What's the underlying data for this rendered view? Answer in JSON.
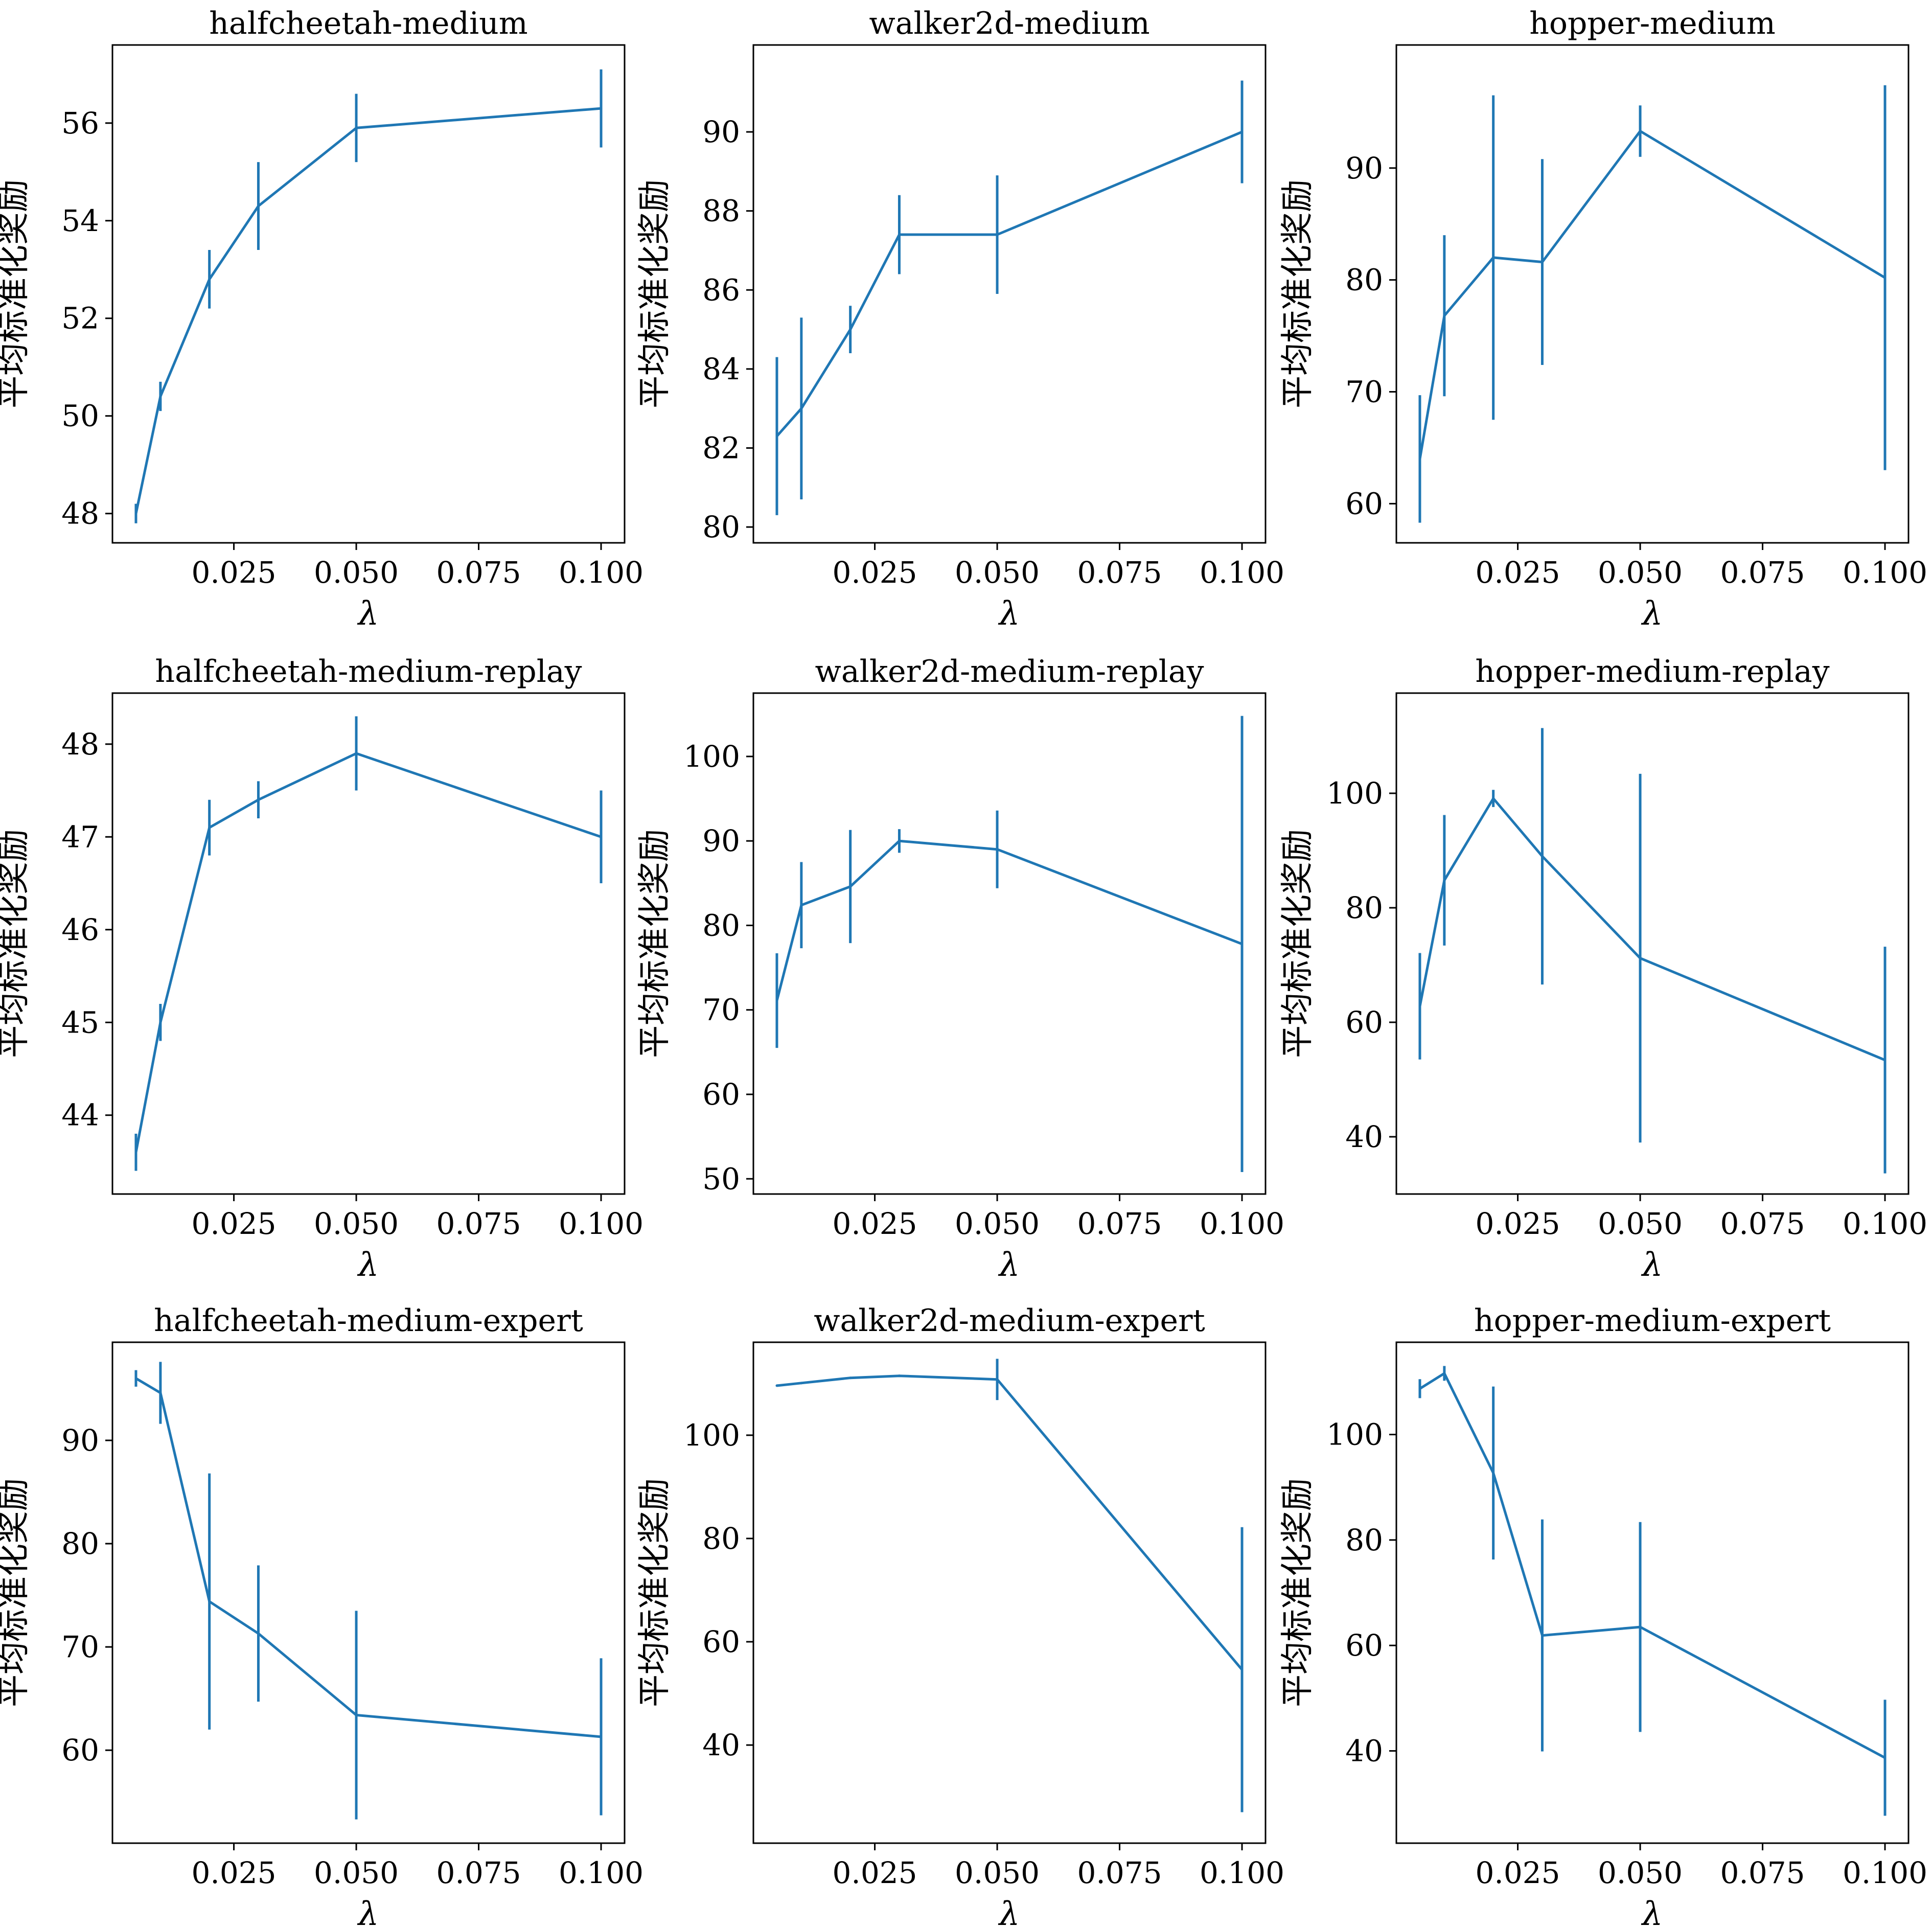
{
  "colors": {
    "series": "#1f77b4",
    "axes": "#000000",
    "background": "#ffffff"
  },
  "chart_data": [
    {
      "type": "line",
      "title": "halfcheetah-medium",
      "xlabel": "λ",
      "ylabel": "平均标准化奖励",
      "x": [
        0.005,
        0.01,
        0.02,
        0.03,
        0.05,
        0.1
      ],
      "series": [
        {
          "values": [
            48.0,
            50.4,
            52.8,
            54.3,
            55.9,
            56.3
          ],
          "err": [
            0.2,
            0.3,
            0.6,
            0.9,
            0.7,
            0.8
          ]
        }
      ],
      "xlim": [
        0.0002,
        0.1048
      ],
      "ylim": [
        47.4,
        57.6
      ],
      "xticks": [
        0.025,
        0.05,
        0.075,
        0.1
      ],
      "xtick_labels": [
        "0.025",
        "0.050",
        "0.075",
        "0.100"
      ],
      "yticks": [
        48,
        50,
        52,
        54,
        56
      ],
      "ytick_labels": [
        "48",
        "50",
        "52",
        "54",
        "56"
      ],
      "grid": false
    },
    {
      "type": "line",
      "title": "walker2d-medium",
      "xlabel": "λ",
      "ylabel": "平均标准化奖励",
      "x": [
        0.005,
        0.01,
        0.02,
        0.03,
        0.05,
        0.1
      ],
      "series": [
        {
          "values": [
            82.3,
            83.0,
            85.0,
            87.4,
            87.4,
            90.0
          ],
          "err": [
            2.0,
            2.3,
            0.6,
            1.0,
            1.5,
            1.3
          ]
        }
      ],
      "xlim": [
        0.0002,
        0.1048
      ],
      "ylim": [
        79.6,
        92.2
      ],
      "xticks": [
        0.025,
        0.05,
        0.075,
        0.1
      ],
      "xtick_labels": [
        "0.025",
        "0.050",
        "0.075",
        "0.100"
      ],
      "yticks": [
        80,
        82,
        84,
        86,
        88,
        90
      ],
      "ytick_labels": [
        "80",
        "82",
        "84",
        "86",
        "88",
        "90"
      ],
      "grid": false
    },
    {
      "type": "line",
      "title": "hopper-medium",
      "xlabel": "λ",
      "ylabel": "平均标准化奖励",
      "x": [
        0.005,
        0.01,
        0.02,
        0.03,
        0.05,
        0.1
      ],
      "series": [
        {
          "values": [
            64.0,
            76.8,
            82.0,
            81.6,
            93.3,
            80.2
          ],
          "err": [
            5.7,
            7.2,
            14.5,
            9.2,
            2.3,
            17.2
          ]
        }
      ],
      "xlim": [
        0.0002,
        0.1048
      ],
      "ylim": [
        56.5,
        101.0
      ],
      "xticks": [
        0.025,
        0.05,
        0.075,
        0.1
      ],
      "xtick_labels": [
        "0.025",
        "0.050",
        "0.075",
        "0.100"
      ],
      "yticks": [
        60,
        70,
        80,
        90
      ],
      "ytick_labels": [
        "60",
        "70",
        "80",
        "90"
      ],
      "grid": false
    },
    {
      "type": "line",
      "title": "halfcheetah-medium-replay",
      "xlabel": "λ",
      "ylabel": "平均标准化奖励",
      "x": [
        0.005,
        0.01,
        0.02,
        0.03,
        0.05,
        0.1
      ],
      "series": [
        {
          "values": [
            43.6,
            45.0,
            47.1,
            47.4,
            47.9,
            47.0
          ],
          "err": [
            0.2,
            0.2,
            0.3,
            0.2,
            0.4,
            0.5
          ]
        }
      ],
      "xlim": [
        0.0002,
        0.1048
      ],
      "ylim": [
        43.15,
        48.55
      ],
      "xticks": [
        0.025,
        0.05,
        0.075,
        0.1
      ],
      "xtick_labels": [
        "0.025",
        "0.050",
        "0.075",
        "0.100"
      ],
      "yticks": [
        44,
        45,
        46,
        47,
        48
      ],
      "ytick_labels": [
        "44",
        "45",
        "46",
        "47",
        "48"
      ],
      "grid": false
    },
    {
      "type": "line",
      "title": "walker2d-medium-replay",
      "xlabel": "λ",
      "ylabel": "平均标准化奖励",
      "x": [
        0.005,
        0.01,
        0.02,
        0.03,
        0.05,
        0.1
      ],
      "series": [
        {
          "values": [
            71.1,
            82.4,
            84.6,
            90.0,
            89.0,
            77.8
          ],
          "err": [
            5.6,
            5.1,
            6.7,
            1.4,
            4.6,
            27.0
          ]
        }
      ],
      "xlim": [
        0.0002,
        0.1048
      ],
      "ylim": [
        48.2,
        107.5
      ],
      "xticks": [
        0.025,
        0.05,
        0.075,
        0.1
      ],
      "xtick_labels": [
        "0.025",
        "0.050",
        "0.075",
        "0.100"
      ],
      "yticks": [
        50,
        60,
        70,
        80,
        90,
        100
      ],
      "ytick_labels": [
        "50",
        "60",
        "70",
        "80",
        "90",
        "100"
      ],
      "grid": false
    },
    {
      "type": "line",
      "title": "hopper-medium-replay",
      "xlabel": "λ",
      "ylabel": "平均标准化奖励",
      "x": [
        0.005,
        0.01,
        0.02,
        0.03,
        0.05,
        0.1
      ],
      "series": [
        {
          "values": [
            62.8,
            84.8,
            99.1,
            89.0,
            71.2,
            53.4
          ],
          "err": [
            9.3,
            11.4,
            1.5,
            22.4,
            32.2,
            19.8
          ]
        }
      ],
      "xlim": [
        0.0002,
        0.1048
      ],
      "ylim": [
        30.0,
        117.5
      ],
      "xticks": [
        0.025,
        0.05,
        0.075,
        0.1
      ],
      "xtick_labels": [
        "0.025",
        "0.050",
        "0.075",
        "0.100"
      ],
      "yticks": [
        40,
        60,
        80,
        100
      ],
      "ytick_labels": [
        "40",
        "60",
        "80",
        "100"
      ],
      "grid": false
    },
    {
      "type": "line",
      "title": "halfcheetah-medium-expert",
      "xlabel": "λ",
      "ylabel": "平均标准化奖励",
      "x": [
        0.005,
        0.01,
        0.02,
        0.03,
        0.05,
        0.1
      ],
      "series": [
        {
          "values": [
            96.0,
            94.6,
            74.4,
            71.3,
            63.4,
            61.3
          ],
          "err": [
            0.8,
            3.0,
            12.4,
            6.6,
            10.1,
            7.6
          ]
        }
      ],
      "xlim": [
        0.0002,
        0.1048
      ],
      "ylim": [
        51.0,
        99.5
      ],
      "xticks": [
        0.025,
        0.05,
        0.075,
        0.1
      ],
      "xtick_labels": [
        "0.025",
        "0.050",
        "0.075",
        "0.100"
      ],
      "yticks": [
        60,
        70,
        80,
        90
      ],
      "ytick_labels": [
        "60",
        "70",
        "80",
        "90"
      ],
      "grid": false
    },
    {
      "type": "line",
      "title": "walker2d-medium-expert",
      "xlabel": "λ",
      "ylabel": "平均标准化奖励",
      "x": [
        0.005,
        0.01,
        0.02,
        0.03,
        0.05,
        0.1
      ],
      "series": [
        {
          "values": [
            109.6,
            110.1,
            111.1,
            111.5,
            110.8,
            54.6
          ],
          "err": [
            0.0,
            0.0,
            0.0,
            0.0,
            4.0,
            27.6
          ]
        }
      ],
      "xlim": [
        0.0002,
        0.1048
      ],
      "ylim": [
        21.0,
        118.0
      ],
      "xticks": [
        0.025,
        0.05,
        0.075,
        0.1
      ],
      "xtick_labels": [
        "0.025",
        "0.050",
        "0.075",
        "0.100"
      ],
      "yticks": [
        40,
        60,
        80,
        100
      ],
      "ytick_labels": [
        "40",
        "60",
        "80",
        "100"
      ],
      "grid": false
    },
    {
      "type": "line",
      "title": "hopper-medium-expert",
      "xlabel": "λ",
      "ylabel": "平均标准化奖励",
      "x": [
        0.005,
        0.01,
        0.02,
        0.03,
        0.05,
        0.1
      ],
      "series": [
        {
          "values": [
            108.7,
            111.6,
            92.7,
            61.9,
            63.5,
            38.7
          ],
          "err": [
            1.8,
            1.4,
            16.4,
            22.0,
            19.9,
            11.0
          ]
        }
      ],
      "xlim": [
        0.0002,
        0.1048
      ],
      "ylim": [
        22.5,
        117.5
      ],
      "xticks": [
        0.025,
        0.05,
        0.075,
        0.1
      ],
      "xtick_labels": [
        "0.025",
        "0.050",
        "0.075",
        "0.100"
      ],
      "yticks": [
        40,
        60,
        80,
        100
      ],
      "ytick_labels": [
        "40",
        "60",
        "80",
        "100"
      ],
      "grid": false
    }
  ]
}
